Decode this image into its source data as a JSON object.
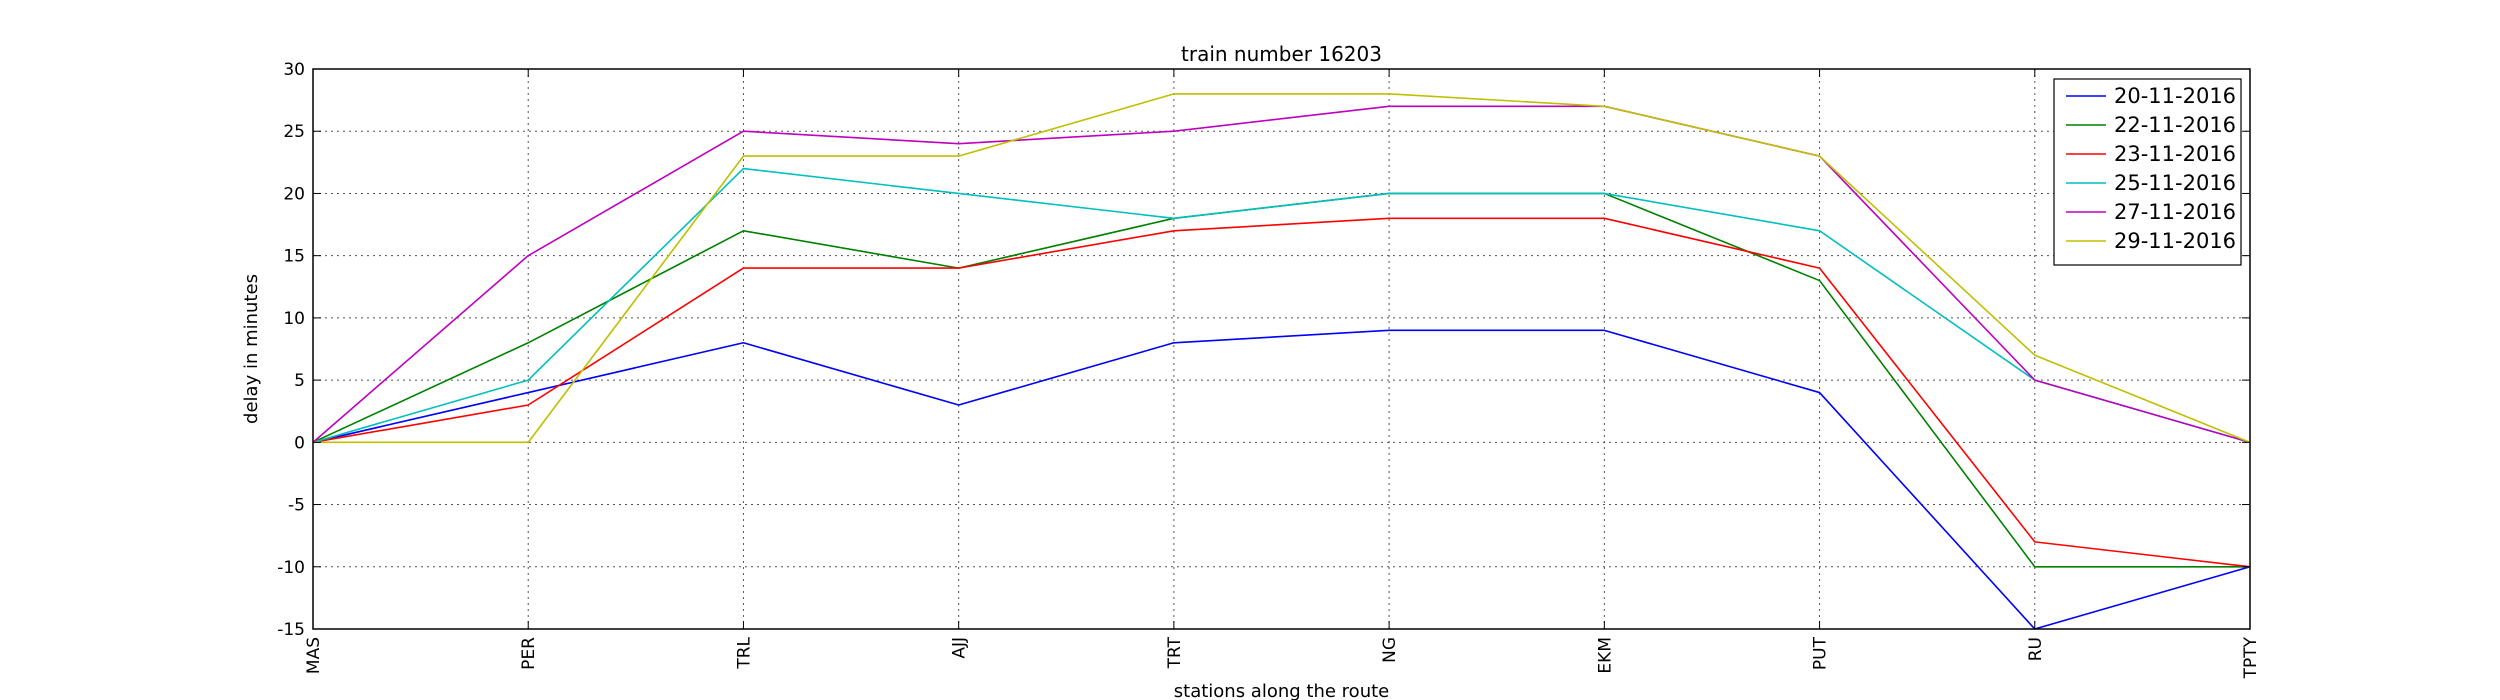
{
  "chart_data": {
    "type": "line",
    "title": "train number 16203",
    "xlabel": "stations along the route",
    "ylabel": "delay in minutes",
    "categories": [
      "MAS",
      "PER",
      "TRL",
      "AJJ",
      "TRT",
      "NG",
      "EKM",
      "PUT",
      "RU",
      "TPTY"
    ],
    "ylim": [
      -15,
      30
    ],
    "yticks": [
      -15,
      -10,
      -5,
      0,
      5,
      10,
      15,
      20,
      25,
      30
    ],
    "grid": true,
    "legend_position": "top-right",
    "series": [
      {
        "name": "20-11-2016",
        "color": "#0000ff",
        "values": [
          0,
          4,
          8,
          3,
          8,
          9,
          9,
          4,
          -15,
          -10
        ]
      },
      {
        "name": "22-11-2016",
        "color": "#008000",
        "values": [
          0,
          8,
          17,
          14,
          18,
          20,
          20,
          13,
          -10,
          -10
        ]
      },
      {
        "name": "23-11-2016",
        "color": "#ff0000",
        "values": [
          0,
          3,
          14,
          14,
          17,
          18,
          18,
          14,
          -8,
          -10
        ]
      },
      {
        "name": "25-11-2016",
        "color": "#00bfbf",
        "values": [
          0,
          5,
          22,
          20,
          18,
          20,
          20,
          17,
          5,
          0
        ]
      },
      {
        "name": "27-11-2016",
        "color": "#bf00bf",
        "values": [
          0,
          15,
          25,
          24,
          25,
          27,
          27,
          23,
          5,
          0
        ]
      },
      {
        "name": "29-11-2016",
        "color": "#bfbf00",
        "values": [
          0,
          0,
          23,
          23,
          28,
          28,
          27,
          23,
          7,
          0
        ]
      }
    ]
  }
}
